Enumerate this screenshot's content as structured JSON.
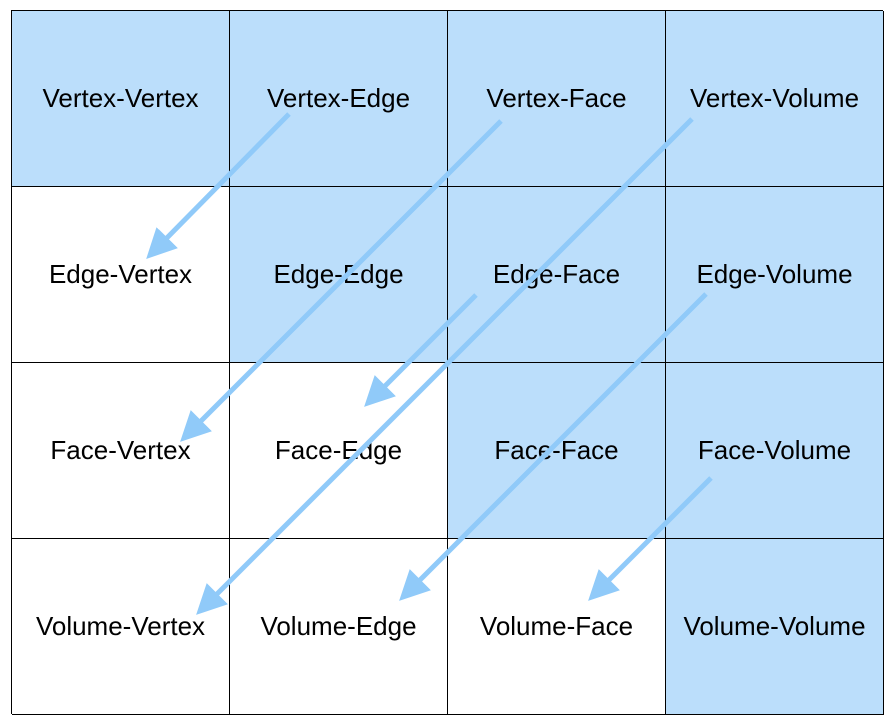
{
  "highlight_color": "#bbdefb",
  "arrow_color": "#90caf9",
  "cells": [
    {
      "label": "Vertex-Vertex",
      "highlighted": true
    },
    {
      "label": "Vertex-Edge",
      "highlighted": true
    },
    {
      "label": "Vertex-Face",
      "highlighted": true
    },
    {
      "label": "Vertex-Volume",
      "highlighted": true
    },
    {
      "label": "Edge-Vertex",
      "highlighted": false
    },
    {
      "label": "Edge-Edge",
      "highlighted": true
    },
    {
      "label": "Edge-Face",
      "highlighted": true
    },
    {
      "label": "Edge-Volume",
      "highlighted": true
    },
    {
      "label": "Face-Vertex",
      "highlighted": false
    },
    {
      "label": "Face-Edge",
      "highlighted": false
    },
    {
      "label": "Face-Face",
      "highlighted": true
    },
    {
      "label": "Face-Volume",
      "highlighted": true
    },
    {
      "label": "Volume-Vertex",
      "highlighted": false
    },
    {
      "label": "Volume-Edge",
      "highlighted": false
    },
    {
      "label": "Volume-Face",
      "highlighted": false
    },
    {
      "label": "Volume-Volume",
      "highlighted": true
    }
  ],
  "arrows": [
    {
      "from": "Vertex-Edge",
      "to": "Edge-Vertex"
    },
    {
      "from": "Vertex-Face",
      "to": "Face-Vertex"
    },
    {
      "from": "Vertex-Volume",
      "to": "Volume-Vertex"
    },
    {
      "from": "Edge-Face",
      "to": "Face-Edge"
    },
    {
      "from": "Edge-Volume",
      "to": "Volume-Edge"
    },
    {
      "from": "Face-Volume",
      "to": "Volume-Face"
    }
  ]
}
